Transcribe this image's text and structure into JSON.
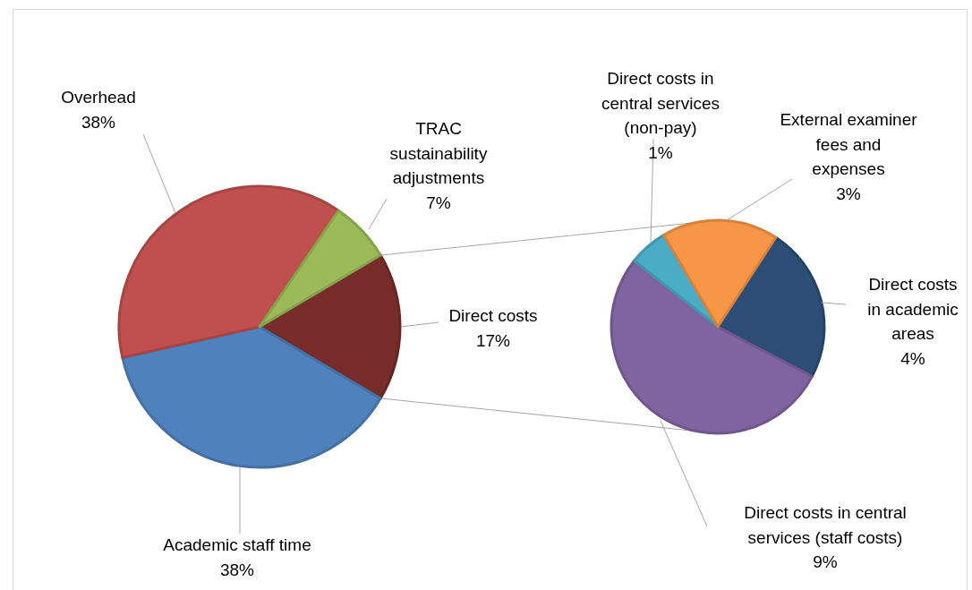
{
  "chart_data": [
    {
      "type": "pie",
      "categories": [
        "Direct costs",
        "Academic staff time",
        "Overhead",
        "TRAC sustainability adjustments"
      ],
      "values": [
        17,
        38,
        38,
        7
      ],
      "colors": [
        "#772c2a",
        "#4f81bd",
        "#c0504d",
        "#9bbb59"
      ],
      "value_labels": [
        "17%",
        "38%",
        "38%",
        "7%"
      ]
    },
    {
      "type": "pie",
      "categories": [
        "Direct costs in academic areas",
        "Direct costs in central services (staff costs)",
        "Direct costs in central services (non-pay)",
        "External examiner fees and expenses"
      ],
      "values": [
        4,
        9,
        1,
        3
      ],
      "colors": [
        "#2c4d75",
        "#8064a2",
        "#4bacc6",
        "#f79646"
      ],
      "value_labels": [
        "4%",
        "9%",
        "1%",
        "3%"
      ]
    }
  ]
}
